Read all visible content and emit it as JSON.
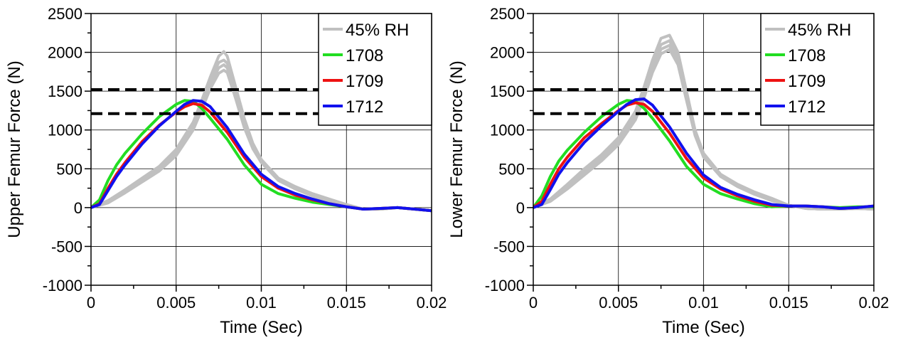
{
  "chart_data": [
    {
      "type": "line",
      "title": "",
      "xlabel": "Time (Sec)",
      "ylabel": "Upper Femur Force (N)",
      "xlim": [
        0,
        0.02
      ],
      "ylim": [
        -1000,
        2500
      ],
      "xticks": [
        0,
        0.005,
        0.01,
        0.015,
        0.02
      ],
      "xtick_labels": [
        "0",
        "0.005",
        "0.01",
        "0.015",
        "0.02"
      ],
      "yticks": [
        -1000,
        -500,
        0,
        500,
        1000,
        1500,
        2000,
        2500
      ],
      "ytick_labels": [
        "-1000",
        "-500",
        "0",
        "500",
        "1000",
        "1500",
        "2000",
        "2500"
      ],
      "grid": true,
      "legend_position": "top-right",
      "reference_lines": [
        1520,
        1210
      ],
      "series": [
        {
          "name": "45% RH",
          "color": "#c0c0c0",
          "x": [
            0,
            0.001,
            0.002,
            0.003,
            0.004,
            0.005,
            0.006,
            0.0065,
            0.007,
            0.0075,
            0.0078,
            0.008,
            0.0085,
            0.009,
            0.0095,
            0.01,
            0.011,
            0.012,
            0.013,
            0.014,
            0.015,
            0.016,
            0.017,
            0.018,
            0.019,
            0.02
          ],
          "y": [
            0,
            90,
            230,
            380,
            530,
            750,
            1100,
            1380,
            1680,
            1950,
            2010,
            1950,
            1550,
            1150,
            830,
            620,
            380,
            270,
            180,
            110,
            40,
            -20,
            -20,
            0,
            -20,
            -40
          ]
        },
        {
          "name": "45% RH",
          "color": "#c0c0c0",
          "x": [
            0,
            0.001,
            0.002,
            0.003,
            0.004,
            0.005,
            0.006,
            0.0065,
            0.007,
            0.0075,
            0.0078,
            0.008,
            0.0085,
            0.009,
            0.0095,
            0.01,
            0.011,
            0.012,
            0.013,
            0.014,
            0.015,
            0.016,
            0.017,
            0.018,
            0.019,
            0.02
          ],
          "y": [
            0,
            80,
            210,
            360,
            510,
            720,
            1060,
            1340,
            1630,
            1870,
            1900,
            1860,
            1500,
            1100,
            800,
            600,
            370,
            260,
            170,
            100,
            30,
            -20,
            -20,
            0,
            -20,
            -40
          ]
        },
        {
          "name": "45% RH",
          "color": "#c0c0c0",
          "x": [
            0,
            0.001,
            0.002,
            0.003,
            0.004,
            0.005,
            0.006,
            0.0065,
            0.007,
            0.0075,
            0.0078,
            0.008,
            0.0085,
            0.009,
            0.0095,
            0.01,
            0.011,
            0.012,
            0.013,
            0.014,
            0.015,
            0.016,
            0.017,
            0.018,
            0.019,
            0.02
          ],
          "y": [
            0,
            70,
            200,
            340,
            490,
            690,
            1030,
            1300,
            1580,
            1800,
            1840,
            1800,
            1450,
            1060,
            780,
            590,
            360,
            250,
            160,
            90,
            30,
            -20,
            -20,
            0,
            -20,
            -40
          ]
        },
        {
          "name": "45% RH",
          "color": "#c0c0c0",
          "x": [
            0,
            0.001,
            0.002,
            0.003,
            0.004,
            0.005,
            0.006,
            0.0065,
            0.007,
            0.0075,
            0.0078,
            0.008,
            0.0085,
            0.009,
            0.0095,
            0.01,
            0.011,
            0.012,
            0.013,
            0.014,
            0.015,
            0.016,
            0.017,
            0.018,
            0.019,
            0.02
          ],
          "y": [
            0,
            60,
            190,
            330,
            470,
            670,
            1000,
            1260,
            1530,
            1730,
            1770,
            1740,
            1400,
            1030,
            760,
            580,
            350,
            240,
            150,
            80,
            30,
            -20,
            -20,
            0,
            -20,
            -40
          ]
        },
        {
          "name": "1708",
          "color": "#22dd22",
          "x": [
            0,
            0.0005,
            0.001,
            0.0015,
            0.002,
            0.003,
            0.004,
            0.005,
            0.0055,
            0.006,
            0.0065,
            0.007,
            0.008,
            0.009,
            0.01,
            0.011,
            0.012,
            0.013,
            0.014,
            0.015,
            0.016,
            0.017,
            0.018,
            0.019,
            0.02
          ],
          "y": [
            0,
            100,
            350,
            550,
            700,
            950,
            1170,
            1330,
            1380,
            1370,
            1280,
            1150,
            880,
            550,
            300,
            180,
            120,
            70,
            40,
            10,
            -20,
            -10,
            0,
            -20,
            -40
          ]
        },
        {
          "name": "1709",
          "color": "#ee1111",
          "x": [
            0,
            0.0005,
            0.001,
            0.0015,
            0.002,
            0.003,
            0.004,
            0.005,
            0.0055,
            0.006,
            0.0065,
            0.007,
            0.008,
            0.009,
            0.01,
            0.011,
            0.012,
            0.013,
            0.014,
            0.015,
            0.016,
            0.017,
            0.018,
            0.019,
            0.02
          ],
          "y": [
            0,
            50,
            250,
            430,
            580,
            850,
            1060,
            1230,
            1300,
            1340,
            1320,
            1230,
            970,
            650,
            400,
            250,
            160,
            100,
            50,
            10,
            -20,
            -10,
            0,
            -20,
            -40
          ]
        },
        {
          "name": "1712",
          "color": "#1111ee",
          "x": [
            0,
            0.0005,
            0.001,
            0.0015,
            0.002,
            0.003,
            0.004,
            0.005,
            0.0055,
            0.006,
            0.0065,
            0.007,
            0.008,
            0.009,
            0.01,
            0.011,
            0.012,
            0.013,
            0.014,
            0.015,
            0.016,
            0.017,
            0.018,
            0.019,
            0.02
          ],
          "y": [
            0,
            40,
            220,
            400,
            550,
            820,
            1050,
            1240,
            1330,
            1380,
            1370,
            1300,
            1030,
            690,
            430,
            270,
            180,
            110,
            50,
            10,
            -20,
            -10,
            0,
            -20,
            -40
          ]
        }
      ]
    },
    {
      "type": "line",
      "title": "",
      "xlabel": "Time (Sec)",
      "ylabel": "Lower Femur Force (N)",
      "xlim": [
        0,
        0.02
      ],
      "ylim": [
        -1000,
        2500
      ],
      "xticks": [
        0,
        0.005,
        0.01,
        0.015,
        0.02
      ],
      "xtick_labels": [
        "0",
        "0.005",
        "0.01",
        "0.015",
        "0.02"
      ],
      "yticks": [
        -1000,
        -500,
        0,
        500,
        1000,
        1500,
        2000,
        2500
      ],
      "ytick_labels": [
        "-1000",
        "-500",
        "0",
        "500",
        "1000",
        "1500",
        "2000",
        "2500"
      ],
      "grid": true,
      "legend_position": "top-right",
      "reference_lines": [
        1520,
        1210
      ],
      "series": [
        {
          "name": "45% RH",
          "color": "#c0c0c0",
          "x": [
            0,
            0.001,
            0.002,
            0.003,
            0.004,
            0.005,
            0.006,
            0.0065,
            0.007,
            0.0075,
            0.008,
            0.0085,
            0.009,
            0.0095,
            0.01,
            0.011,
            0.012,
            0.013,
            0.014,
            0.015,
            0.016,
            0.017,
            0.018,
            0.019,
            0.02
          ],
          "y": [
            0,
            110,
            300,
            500,
            680,
            900,
            1240,
            1550,
            1900,
            2180,
            2220,
            2000,
            1500,
            1000,
            700,
            430,
            300,
            200,
            120,
            30,
            -10,
            -20,
            -20,
            -10,
            -20
          ]
        },
        {
          "name": "45% RH",
          "color": "#c0c0c0",
          "x": [
            0,
            0.001,
            0.002,
            0.003,
            0.004,
            0.005,
            0.006,
            0.0065,
            0.007,
            0.0075,
            0.008,
            0.0085,
            0.009,
            0.0095,
            0.01,
            0.011,
            0.012,
            0.013,
            0.014,
            0.015,
            0.016,
            0.017,
            0.018,
            0.019,
            0.02
          ],
          "y": [
            0,
            100,
            280,
            470,
            650,
            870,
            1200,
            1500,
            1840,
            2100,
            2150,
            1940,
            1460,
            970,
            680,
            420,
            290,
            190,
            110,
            30,
            -10,
            -20,
            -20,
            -10,
            -20
          ]
        },
        {
          "name": "45% RH",
          "color": "#c0c0c0",
          "x": [
            0,
            0.001,
            0.002,
            0.003,
            0.004,
            0.005,
            0.006,
            0.0065,
            0.007,
            0.0075,
            0.008,
            0.0085,
            0.009,
            0.0095,
            0.01,
            0.011,
            0.012,
            0.013,
            0.014,
            0.015,
            0.016,
            0.017,
            0.018,
            0.019,
            0.02
          ],
          "y": [
            0,
            90,
            260,
            450,
            620,
            840,
            1160,
            1450,
            1790,
            2040,
            2090,
            1890,
            1420,
            950,
            670,
            410,
            280,
            180,
            100,
            30,
            -10,
            -20,
            -20,
            -10,
            -20
          ]
        },
        {
          "name": "45% RH",
          "color": "#c0c0c0",
          "x": [
            0,
            0.001,
            0.002,
            0.003,
            0.004,
            0.005,
            0.006,
            0.0065,
            0.007,
            0.0075,
            0.008,
            0.0085,
            0.009,
            0.0095,
            0.01,
            0.011,
            0.012,
            0.013,
            0.014,
            0.015,
            0.016,
            0.017,
            0.018,
            0.019,
            0.02
          ],
          "y": [
            0,
            80,
            240,
            420,
            600,
            810,
            1130,
            1410,
            1740,
            1980,
            2040,
            1840,
            1380,
            930,
            650,
            400,
            270,
            170,
            90,
            30,
            -10,
            -20,
            -20,
            -10,
            -20
          ]
        },
        {
          "name": "1708",
          "color": "#22dd22",
          "x": [
            0,
            0.0005,
            0.001,
            0.0015,
            0.002,
            0.003,
            0.004,
            0.005,
            0.0055,
            0.006,
            0.0065,
            0.007,
            0.008,
            0.009,
            0.01,
            0.011,
            0.012,
            0.013,
            0.014,
            0.015,
            0.016,
            0.017,
            0.018,
            0.019,
            0.02
          ],
          "y": [
            0,
            150,
            400,
            600,
            740,
            970,
            1170,
            1330,
            1380,
            1370,
            1280,
            1150,
            860,
            530,
            300,
            180,
            110,
            50,
            10,
            20,
            20,
            10,
            0,
            10,
            10
          ]
        },
        {
          "name": "1709",
          "color": "#ee1111",
          "x": [
            0,
            0.0005,
            0.001,
            0.0015,
            0.002,
            0.003,
            0.004,
            0.005,
            0.0055,
            0.006,
            0.0065,
            0.007,
            0.008,
            0.009,
            0.01,
            0.011,
            0.012,
            0.013,
            0.014,
            0.015,
            0.016,
            0.017,
            0.018,
            0.019,
            0.02
          ],
          "y": [
            0,
            80,
            300,
            500,
            650,
            900,
            1080,
            1250,
            1320,
            1350,
            1330,
            1240,
            960,
            630,
            380,
            240,
            150,
            80,
            30,
            20,
            20,
            10,
            -10,
            0,
            20
          ]
        },
        {
          "name": "1712",
          "color": "#1111ee",
          "x": [
            0,
            0.0005,
            0.001,
            0.0015,
            0.002,
            0.003,
            0.004,
            0.005,
            0.0055,
            0.006,
            0.0065,
            0.007,
            0.008,
            0.009,
            0.01,
            0.011,
            0.012,
            0.013,
            0.014,
            0.015,
            0.016,
            0.017,
            0.018,
            0.019,
            0.02
          ],
          "y": [
            0,
            40,
            230,
            430,
            580,
            840,
            1050,
            1240,
            1330,
            1390,
            1400,
            1320,
            1040,
            700,
            420,
            260,
            170,
            100,
            40,
            20,
            20,
            10,
            -10,
            0,
            20
          ]
        }
      ]
    }
  ]
}
